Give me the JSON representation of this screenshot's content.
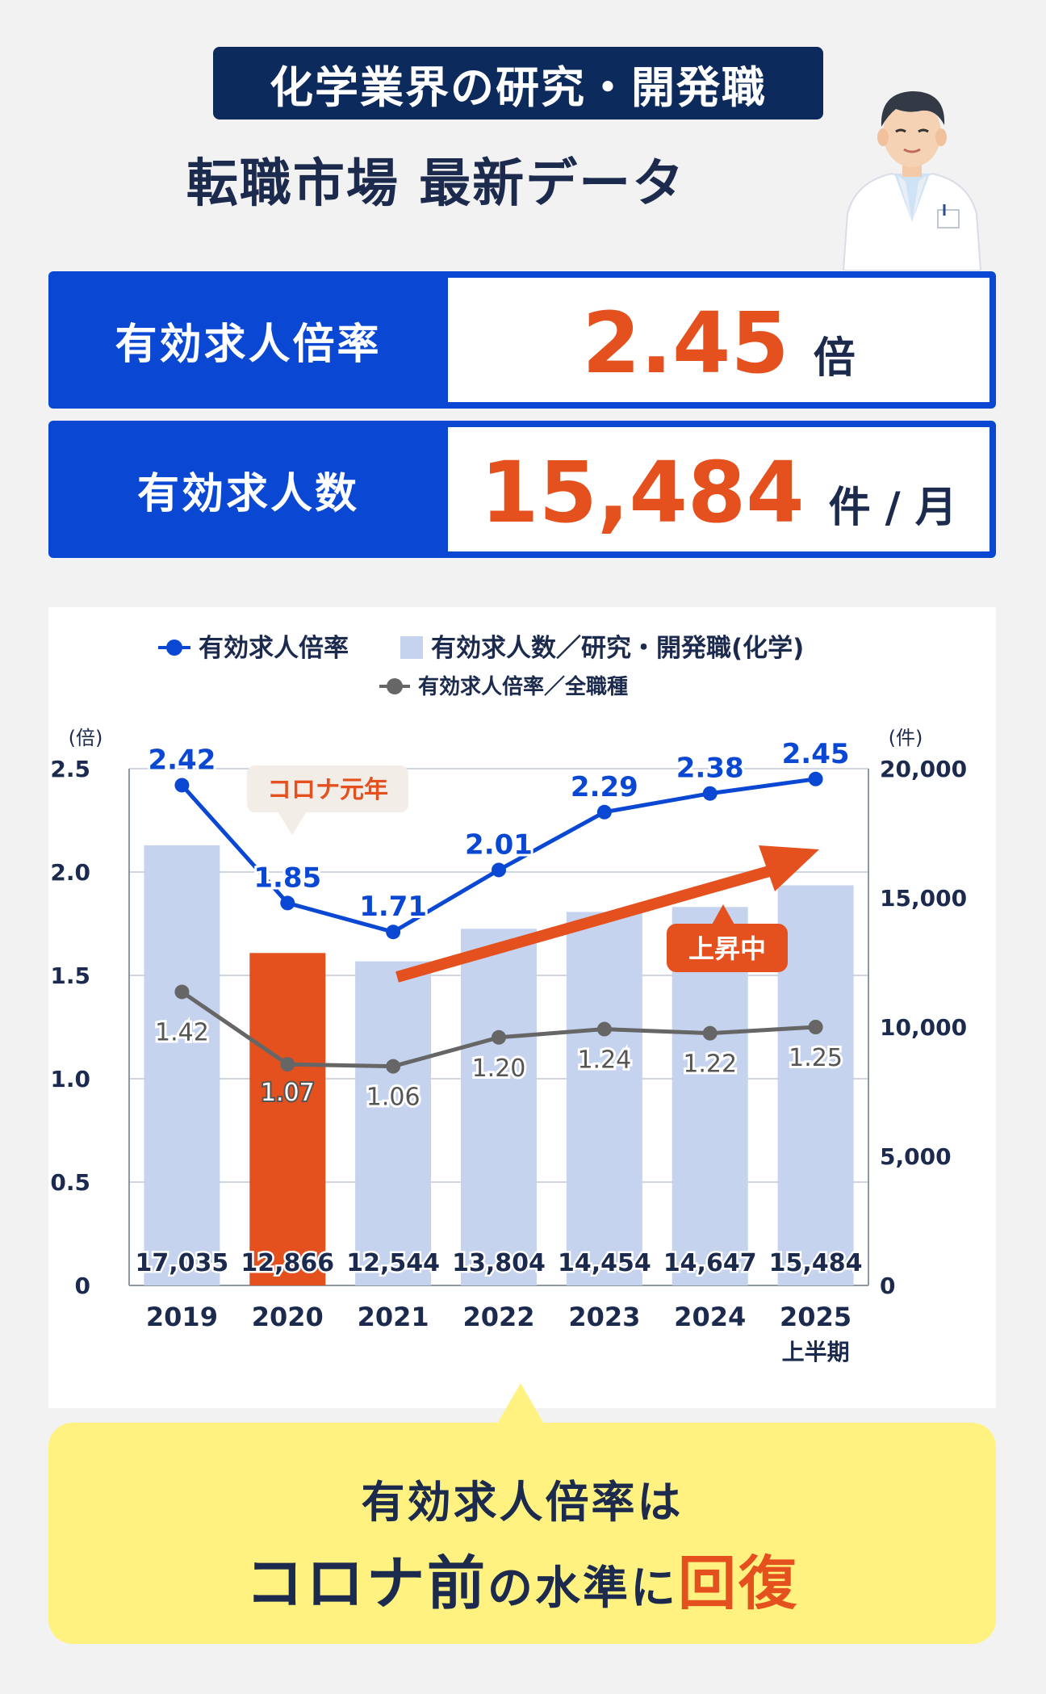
{
  "header": {
    "badge": "化学業界の研究・開発職",
    "title": "転職市場 最新データ"
  },
  "stats": [
    {
      "label": "有効求人倍率",
      "value": "2.45",
      "unit": "倍"
    },
    {
      "label": "有効求人数",
      "value": "15,484",
      "unit": "件 / 月"
    }
  ],
  "colors": {
    "navy": "#0d2a5c",
    "blue": "#0a48d4",
    "orange": "#e4501e",
    "bar": "#c5d3ee",
    "gray_line": "#666666",
    "yellow": "#fff280"
  },
  "chart_data": {
    "type": "bar",
    "categories": [
      "2019",
      "2020",
      "2021",
      "2022",
      "2023",
      "2024",
      "2025"
    ],
    "category_sublabels": [
      "",
      "",
      "",
      "",
      "",
      "",
      "上半期"
    ],
    "series": [
      {
        "name": "有効求人数／研究・開発職(化学)",
        "type": "bar",
        "axis": "right",
        "values": [
          17035,
          12866,
          12544,
          13804,
          14454,
          14647,
          15484
        ],
        "labels": [
          "17,035",
          "12,866",
          "12,544",
          "13,804",
          "14,454",
          "14,647",
          "15,484"
        ],
        "highlight_index": 1
      },
      {
        "name": "有効求人倍率",
        "type": "line",
        "axis": "left",
        "values": [
          2.42,
          1.85,
          1.71,
          2.01,
          2.29,
          2.38,
          2.45
        ],
        "labels": [
          "2.42",
          "1.85",
          "1.71",
          "2.01",
          "2.29",
          "2.38",
          "2.45"
        ]
      },
      {
        "name": "有効求人倍率／全職種",
        "type": "line",
        "axis": "left",
        "values": [
          1.42,
          1.07,
          1.06,
          1.2,
          1.24,
          1.22,
          1.25
        ],
        "labels": [
          "1.42",
          "1.07",
          "1.06",
          "1.20",
          "1.24",
          "1.22",
          "1.25"
        ]
      }
    ],
    "left_axis": {
      "unit": "(倍)",
      "ticks": [
        "2.5",
        "2.0",
        "1.5",
        "1.0",
        "0.5",
        "0"
      ],
      "range": [
        0,
        2.5
      ]
    },
    "right_axis": {
      "unit": "(件)",
      "ticks": [
        "20,000",
        "15,000",
        "10,000",
        "5,000",
        "0"
      ],
      "range": [
        0,
        20000
      ]
    },
    "grid": true,
    "legend_position": "top",
    "annotations": {
      "covid": "コロナ元年",
      "rising": "上昇中"
    }
  },
  "callout": {
    "line1": "有効求人倍率は",
    "line2_a": "コロナ前",
    "line2_b": "の水準に",
    "line2_c": "回復"
  }
}
